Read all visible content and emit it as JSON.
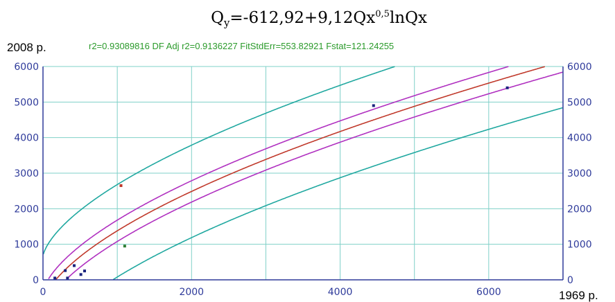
{
  "chart_data": {
    "type": "scatter",
    "title": "Qy=-612,92+9,12Qx0,5lnQx",
    "title_parts": {
      "q1": "Q",
      "sub": "y",
      "mid": "=-612,92+9,12Qx",
      "sup": "0,5",
      "end": "lnQx"
    },
    "stats_line": "r2=0.93089816  DF Adj r2=0.9136227  FitStdErr=553.82921  Fstat=121.24255",
    "stats": {
      "r2": 0.93089816,
      "df_adj_r2": 0.9136227,
      "fit_std_err": 553.82921,
      "fstat": 121.24255
    },
    "ylabel": "2008 p.",
    "xlabel": "1969 p.",
    "xlim": [
      0,
      7000
    ],
    "ylim": [
      0,
      6000
    ],
    "x_ticks": [
      0,
      2000,
      4000,
      6000
    ],
    "y_ticks": [
      0,
      1000,
      2000,
      3000,
      4000,
      5000,
      6000
    ],
    "grid": true,
    "model": {
      "a": -612.92,
      "b": 9.12
    },
    "bands": {
      "confidence_offset": 300,
      "prediction_offset": 1300
    },
    "points": [
      {
        "x": 160,
        "y": 50,
        "color": "#1a237e"
      },
      {
        "x": 300,
        "y": 260,
        "color": "#1a237e"
      },
      {
        "x": 330,
        "y": 50,
        "color": "#1a237e"
      },
      {
        "x": 420,
        "y": 400,
        "color": "#1a237e"
      },
      {
        "x": 510,
        "y": 150,
        "color": "#1a237e"
      },
      {
        "x": 560,
        "y": 250,
        "color": "#1a237e"
      },
      {
        "x": 1050,
        "y": 2650,
        "color": "#c0392b"
      },
      {
        "x": 1100,
        "y": 950,
        "color": "#2e7d32"
      },
      {
        "x": 4450,
        "y": 4900,
        "color": "#1a237e"
      },
      {
        "x": 6250,
        "y": 5400,
        "color": "#1a237e"
      }
    ],
    "colors": {
      "fit": "#c0392b",
      "confidence": "#b030c0",
      "prediction": "#20a8a0",
      "grid": "#7fd0c8",
      "axis": "#2e3a9a",
      "stats": "#2a9a2a"
    }
  }
}
